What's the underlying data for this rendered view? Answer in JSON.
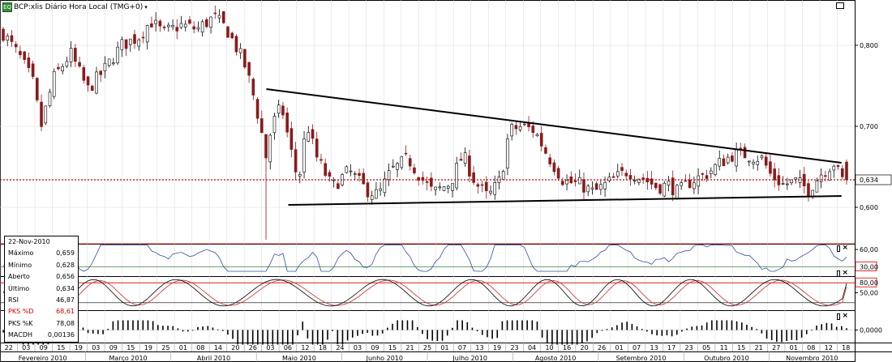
{
  "header": {
    "title": "BCP:xlis Diário Hora Local (TMG+0)",
    "badge": "EQ",
    "menu_icon": "chevron-down-icon"
  },
  "info_panel": {
    "date": "22-Nov-2010",
    "rows": [
      {
        "label": "Máximo",
        "value": "0,659"
      },
      {
        "label": "Mínimo",
        "value": "0,628"
      },
      {
        "label": "Aberto",
        "value": "0,656"
      },
      {
        "label": "Último",
        "value": "0,634"
      },
      {
        "label": "RSI",
        "value": "46,87"
      },
      {
        "label": "PKS %D",
        "value": "68,61",
        "highlight": true
      },
      {
        "label": "PKS %K",
        "value": "78,08"
      },
      {
        "label": "MACDH",
        "value": "0,00136"
      }
    ]
  },
  "colors": {
    "up": "#000000",
    "down": "#8b1a1a",
    "last_price": "#cc0000",
    "pks_d": "#d04040",
    "pks_k": "#000000",
    "rsi": "#3050a0",
    "ref_red": "#cc0000",
    "ref_green": "#408040",
    "grid": "#d8d8d8"
  },
  "chart_data": [
    {
      "type": "candlestick",
      "title": "BCP:xlis Diário Hora Local (TMG+0)",
      "ylim": [
        0.556,
        0.856
      ],
      "yticks": [
        {
          "value": 0.8,
          "label": "0,800"
        },
        {
          "value": 0.7,
          "label": "0,700"
        },
        {
          "value": 0.6,
          "label": "0,600"
        }
      ],
      "last_price": {
        "value": 0.634,
        "label": "0,634"
      },
      "x_day_labels": [
        "22",
        "03",
        "09",
        "15",
        "19",
        "03",
        "09",
        "15",
        "19",
        "25",
        "01",
        "08",
        "14",
        "20",
        "26",
        "03",
        "06",
        "12",
        "18",
        "24",
        "03",
        "09",
        "15",
        "21",
        "25",
        "01",
        "07",
        "13",
        "19",
        "23",
        "04",
        "10",
        "16",
        "20",
        "26",
        "01",
        "07",
        "13",
        "17",
        "23",
        "05",
        "11",
        "15",
        "21",
        "27",
        "01",
        "08",
        "12",
        "18"
      ],
      "x_month_labels": [
        "Fevereiro 2010",
        "Março 2010",
        "Abril 2010",
        "Maio 2010",
        "Junho 2010",
        "Julho 2010",
        "Agosto 2010",
        "Setembro 2010",
        "Outubro 2010",
        "Novembro 2010"
      ],
      "trendlines": [
        {
          "name": "upper",
          "from": {
            "t": 0.312,
            "v": 0.746
          },
          "to": {
            "t": 0.994,
            "v": 0.655
          }
        },
        {
          "name": "lower",
          "from": {
            "t": 0.338,
            "v": 0.603
          },
          "to": {
            "t": 0.994,
            "v": 0.614
          }
        }
      ],
      "anchors": [
        [
          0.0,
          0.815
        ],
        [
          0.02,
          0.785
        ],
        [
          0.035,
          0.755
        ],
        [
          0.045,
          0.7
        ],
        [
          0.06,
          0.76
        ],
        [
          0.08,
          0.79
        ],
        [
          0.1,
          0.745
        ],
        [
          0.12,
          0.77
        ],
        [
          0.14,
          0.8
        ],
        [
          0.16,
          0.81
        ],
        [
          0.175,
          0.83
        ],
        [
          0.19,
          0.815
        ],
        [
          0.21,
          0.825
        ],
        [
          0.23,
          0.82
        ],
        [
          0.25,
          0.835
        ],
        [
          0.265,
          0.82
        ],
        [
          0.285,
          0.78
        ],
        [
          0.295,
          0.745
        ],
        [
          0.305,
          0.7
        ],
        [
          0.312,
          0.66
        ],
        [
          0.318,
          0.7
        ],
        [
          0.33,
          0.725
        ],
        [
          0.34,
          0.675
        ],
        [
          0.35,
          0.63
        ],
        [
          0.36,
          0.705
        ],
        [
          0.37,
          0.665
        ],
        [
          0.39,
          0.625
        ],
        [
          0.41,
          0.645
        ],
        [
          0.43,
          0.622
        ],
        [
          0.445,
          0.615
        ],
        [
          0.46,
          0.645
        ],
        [
          0.48,
          0.66
        ],
        [
          0.5,
          0.63
        ],
        [
          0.51,
          0.618
        ],
        [
          0.53,
          0.63
        ],
        [
          0.545,
          0.665
        ],
        [
          0.56,
          0.63
        ],
        [
          0.575,
          0.612
        ],
        [
          0.59,
          0.635
        ],
        [
          0.6,
          0.695
        ],
        [
          0.615,
          0.7
        ],
        [
          0.63,
          0.695
        ],
        [
          0.645,
          0.665
        ],
        [
          0.665,
          0.632
        ],
        [
          0.685,
          0.628
        ],
        [
          0.7,
          0.618
        ],
        [
          0.72,
          0.632
        ],
        [
          0.74,
          0.645
        ],
        [
          0.76,
          0.635
        ],
        [
          0.775,
          0.625
        ],
        [
          0.79,
          0.628
        ],
        [
          0.8,
          0.618
        ],
        [
          0.815,
          0.632
        ],
        [
          0.835,
          0.642
        ],
        [
          0.85,
          0.655
        ],
        [
          0.865,
          0.665
        ],
        [
          0.88,
          0.665
        ],
        [
          0.9,
          0.66
        ],
        [
          0.91,
          0.64
        ],
        [
          0.925,
          0.628
        ],
        [
          0.94,
          0.632
        ],
        [
          0.955,
          0.622
        ],
        [
          0.97,
          0.642
        ],
        [
          0.985,
          0.655
        ],
        [
          0.994,
          0.634
        ]
      ],
      "sample_bar": {
        "open": 0.656,
        "high": 0.659,
        "low": 0.628,
        "close": 0.634
      }
    },
    {
      "type": "line",
      "title": "RSI",
      "ylim": [
        15,
        70
      ],
      "yticks": [
        {
          "value": 60,
          "label": "60,00"
        },
        {
          "value": 30,
          "label": "30,00",
          "boxed": true
        }
      ],
      "ref_lines": [
        70,
        30
      ],
      "series": [
        {
          "name": "RSI",
          "last": 46.87
        }
      ]
    },
    {
      "type": "line",
      "title": "PKS",
      "ylim": [
        0,
        100
      ],
      "yticks": [
        {
          "value": 80,
          "label": "80,00",
          "boxed": true
        },
        {
          "value": 50,
          "label": "50,00"
        }
      ],
      "ref_lines": [
        80,
        20
      ],
      "series": [
        {
          "name": "PKS %D",
          "last": 68.61
        },
        {
          "name": "PKS %K",
          "last": 78.08
        }
      ]
    },
    {
      "type": "bar",
      "title": "MACDH",
      "yticks": [
        {
          "value": 0,
          "label": "0,0000"
        }
      ],
      "series": [
        {
          "name": "MACDH",
          "last": 0.00136
        }
      ]
    }
  ]
}
